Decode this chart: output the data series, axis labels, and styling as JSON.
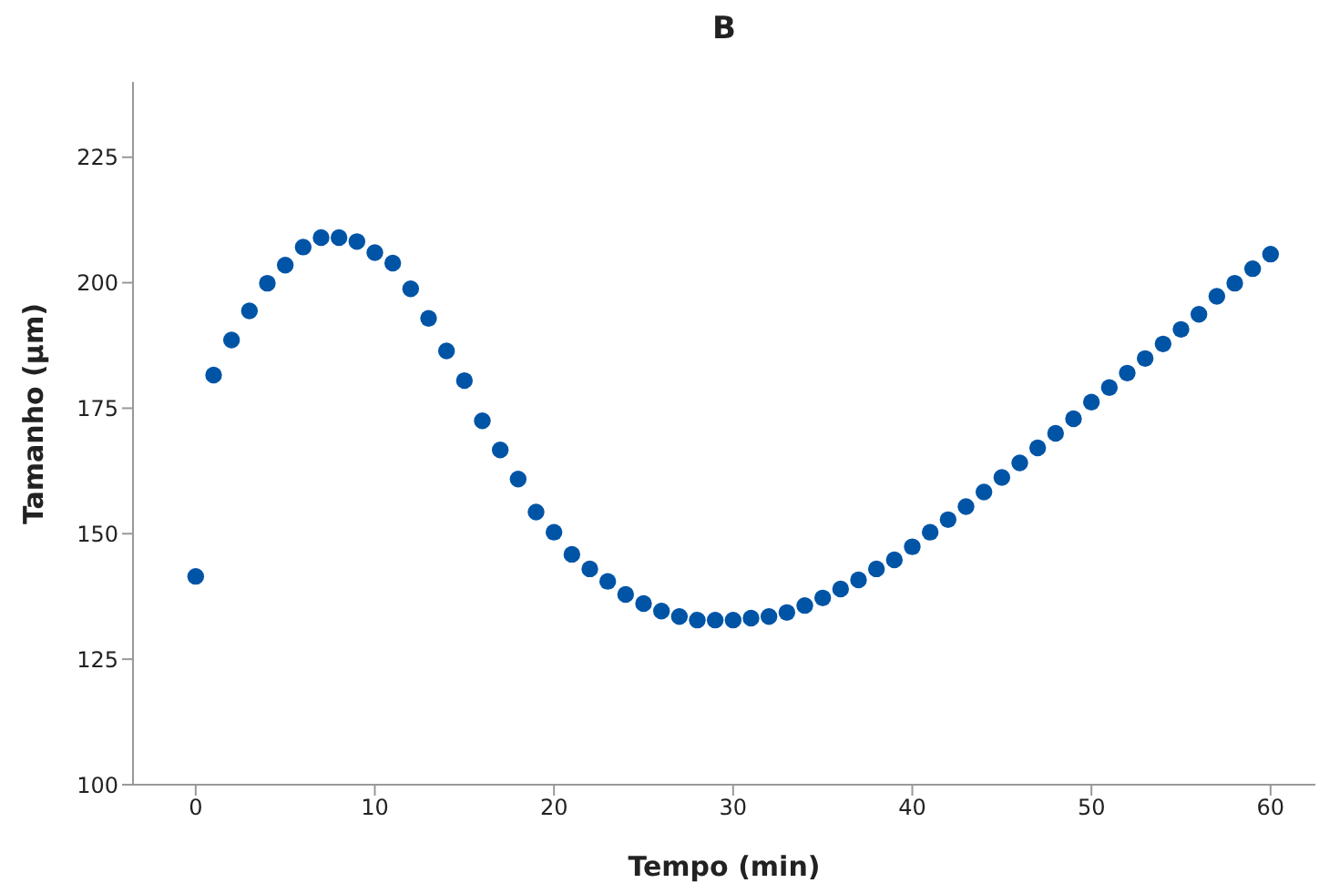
{
  "chart_data": {
    "type": "scatter",
    "title": "B",
    "xlabel": "Tempo (min)",
    "ylabel": "Tamanho (µm)",
    "x": [
      0,
      1,
      2,
      3,
      4,
      5,
      6,
      7,
      8,
      9,
      10,
      11,
      12,
      13,
      14,
      15,
      16,
      17,
      18,
      19,
      20,
      21,
      22,
      23,
      24,
      25,
      26,
      27,
      28,
      29,
      30,
      31,
      32,
      33,
      34,
      35,
      36,
      37,
      38,
      39,
      40,
      41,
      42,
      43,
      44,
      45,
      46,
      47,
      48,
      49,
      50,
      51,
      52,
      53,
      54,
      55,
      56,
      57,
      58,
      59,
      60
    ],
    "series": [
      {
        "color": "#0054a6",
        "values": [
          141.5,
          181.6,
          188.6,
          194.4,
          199.9,
          203.5,
          207.1,
          209,
          209,
          208.2,
          206,
          203.9,
          198.8,
          192.9,
          186.4,
          180.5,
          172.5,
          166.7,
          160.9,
          154.3,
          150.3,
          145.9,
          143,
          140.5,
          137.9,
          136.1,
          134.6,
          133.5,
          132.8,
          132.8,
          132.8,
          133.2,
          133.5,
          134.3,
          135.7,
          137.2,
          139,
          140.8,
          143,
          144.8,
          147.4,
          150.3,
          152.8,
          155.4,
          158.3,
          161.2,
          164.1,
          167.1,
          170,
          172.9,
          176.2,
          179.1,
          182,
          184.9,
          187.8,
          190.7,
          193.7,
          197.3,
          199.9,
          202.8,
          205.7
        ]
      }
    ],
    "xlim": [
      -3.5,
      62.5
    ],
    "xticks": [
      0,
      10,
      20,
      30,
      40,
      50,
      60
    ],
    "ylim": [
      100,
      240
    ],
    "yticks": [
      100,
      125,
      150,
      175,
      200,
      225
    ],
    "grid": false,
    "legend": false,
    "marker": "circle"
  }
}
